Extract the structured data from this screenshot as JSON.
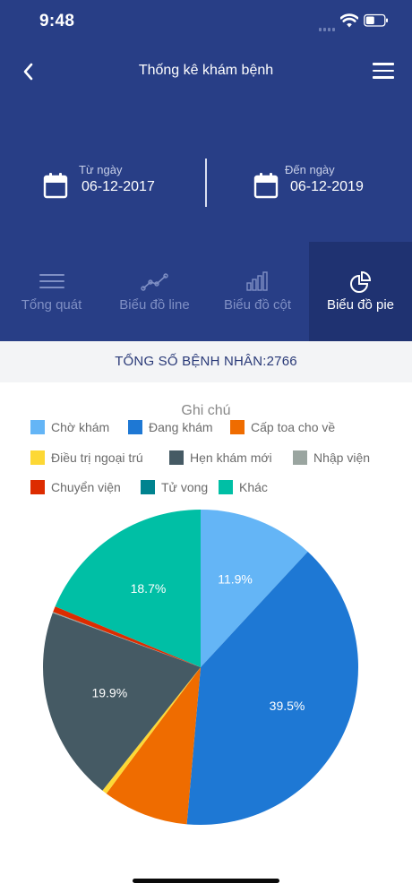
{
  "status_bar": {
    "time": "9:48"
  },
  "nav": {
    "title": "Thống kê khám bệnh"
  },
  "date_range": {
    "from_label": "Từ ngày",
    "from_value": "06-12-2017",
    "to_label": "Đến ngày",
    "to_value": "06-12-2019"
  },
  "tabs": [
    {
      "label": "Tổng quát",
      "icon": "list-lines-icon"
    },
    {
      "label": "Biểu đồ line",
      "icon": "line-chart-icon"
    },
    {
      "label": "Biểu đồ cột",
      "icon": "bar-chart-icon"
    },
    {
      "label": "Biểu đồ pie",
      "icon": "pie-chart-icon",
      "active": true
    }
  ],
  "summary": {
    "total_patients_label": "TỔNG SỐ BỆNH NHÂN:2766"
  },
  "colors": {
    "header_bg": "#283e86",
    "active_tab_bg": "#1f3271"
  },
  "chart_data": {
    "type": "pie",
    "legend_title": "Ghi chú",
    "legend_placement": "top",
    "series": [
      {
        "name": "Chờ khám",
        "value": 11.9,
        "label": "11.9%",
        "color": "#64b5f6"
      },
      {
        "name": "Đang khám",
        "value": 39.5,
        "label": "39.5%",
        "color": "#1e78d4"
      },
      {
        "name": "Cấp toa cho về",
        "value": 8.8,
        "label": "",
        "color": "#ef6c00"
      },
      {
        "name": "Điều trị ngoại trú",
        "value": 0.5,
        "label": "",
        "color": "#fdd835"
      },
      {
        "name": "Hẹn khám mới",
        "value": 19.9,
        "label": "19.9%",
        "color": "#455a64"
      },
      {
        "name": "Nhập viện",
        "value": 0.1,
        "label": "",
        "color": "#9aa5a0"
      },
      {
        "name": "Chuyển viện",
        "value": 0.6,
        "label": "",
        "color": "#dd2c00"
      },
      {
        "name": "Tử vong",
        "value": 0.0,
        "label": "",
        "color": "#00838f"
      },
      {
        "name": "Khác",
        "value": 18.7,
        "label": "18.7%",
        "color": "#00bfa5"
      }
    ]
  }
}
